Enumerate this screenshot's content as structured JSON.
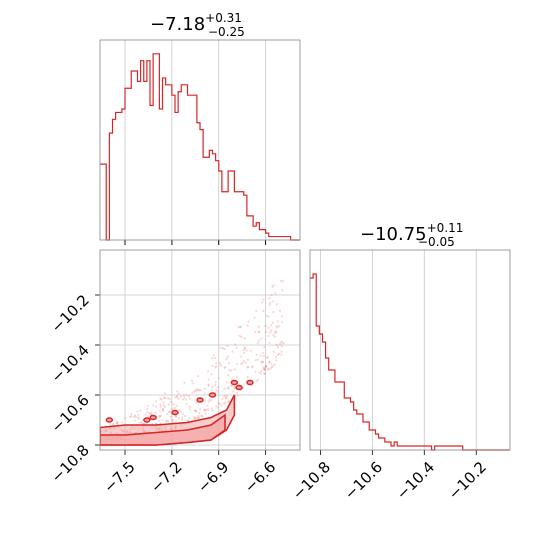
{
  "chart_data": [
    {
      "type": "histogram",
      "panel": "top-left",
      "title": {
        "main": "−7.18",
        "sup": "+0.31",
        "sub": "−0.25"
      },
      "xlim": [
        -7.66,
        -6.38
      ],
      "xticks": [
        -7.5,
        -7.2,
        -6.9,
        -6.6
      ],
      "grid": true,
      "bin_width": 0.02,
      "counts": [
        22,
        22,
        0,
        31,
        35,
        37,
        37,
        38,
        44,
        44,
        49,
        49,
        46,
        52,
        46,
        52,
        39,
        54,
        54,
        38,
        47,
        45,
        45,
        42,
        37,
        43,
        45,
        45,
        42,
        42,
        42,
        34,
        32,
        24,
        24,
        26,
        25,
        23,
        20,
        14,
        14,
        20,
        20,
        14,
        14,
        14,
        13,
        7,
        7,
        4,
        5,
        3,
        3,
        2,
        1,
        1,
        1,
        1,
        1,
        1,
        1,
        0,
        0,
        0
      ],
      "ylim": [
        0,
        58
      ],
      "color": "#d62728"
    },
    {
      "type": "histogram",
      "panel": "bottom-right",
      "title": {
        "main": "−10.75",
        "sup": "+0.11",
        "sub": "−0.05"
      },
      "xlim": [
        -10.84,
        -10.07
      ],
      "xticks": [
        -10.8,
        -10.6,
        -10.4,
        -10.2
      ],
      "grid": true,
      "bin_width": 0.012,
      "counts": [
        43,
        44,
        31,
        29,
        27,
        23,
        20,
        20,
        17,
        17,
        17,
        13,
        13,
        12,
        10,
        9,
        9,
        7,
        7,
        5,
        5,
        4,
        3,
        3,
        2,
        2,
        1,
        2,
        1,
        1,
        1,
        1,
        1,
        1,
        1,
        1,
        1,
        1,
        1,
        0,
        1,
        1,
        1,
        1,
        1,
        1,
        1,
        1,
        1,
        0,
        0,
        0,
        0,
        0,
        0,
        0,
        0,
        0,
        0,
        0,
        0,
        0,
        0,
        0
      ],
      "ylim": [
        0,
        50
      ],
      "color": "#d62728"
    },
    {
      "type": "scatter",
      "panel": "bottom-left",
      "xlim": [
        -7.66,
        -6.38
      ],
      "ylim": [
        -10.82,
        -10.02
      ],
      "xticks": [
        -7.5,
        -7.2,
        -6.9,
        -6.6
      ],
      "yticks": [
        -10.2,
        -10.4,
        -10.6,
        -10.8
      ],
      "grid": true,
      "color": "#d62728",
      "fill_color": "#f4a6a6",
      "contour_bands": [
        {
          "x": [
            -7.66,
            -7.5,
            -7.3,
            -7.1,
            -6.95,
            -6.85,
            -6.8
          ],
          "upper": [
            -10.73,
            -10.72,
            -10.72,
            -10.71,
            -10.69,
            -10.66,
            -10.6
          ],
          "lower": [
            -10.8,
            -10.8,
            -10.8,
            -10.79,
            -10.78,
            -10.74,
            -10.68
          ]
        },
        {
          "x": [
            -7.66,
            -7.5,
            -7.3,
            -7.1,
            -6.95,
            -6.86
          ],
          "upper": [
            -10.76,
            -10.76,
            -10.75,
            -10.74,
            -10.72,
            -10.68
          ],
          "lower": [
            -10.8,
            -10.8,
            -10.8,
            -10.79,
            -10.78,
            -10.74
          ]
        }
      ],
      "contour_islands": [
        {
          "x": -7.6,
          "y": -10.7
        },
        {
          "x": -7.36,
          "y": -10.7
        },
        {
          "x": -7.32,
          "y": -10.69
        },
        {
          "x": -7.18,
          "y": -10.67
        },
        {
          "x": -7.02,
          "y": -10.62
        },
        {
          "x": -6.94,
          "y": -10.6
        },
        {
          "x": -6.8,
          "y": -10.55
        },
        {
          "x": -6.77,
          "y": -10.57
        },
        {
          "x": -6.7,
          "y": -10.55
        }
      ]
    }
  ]
}
